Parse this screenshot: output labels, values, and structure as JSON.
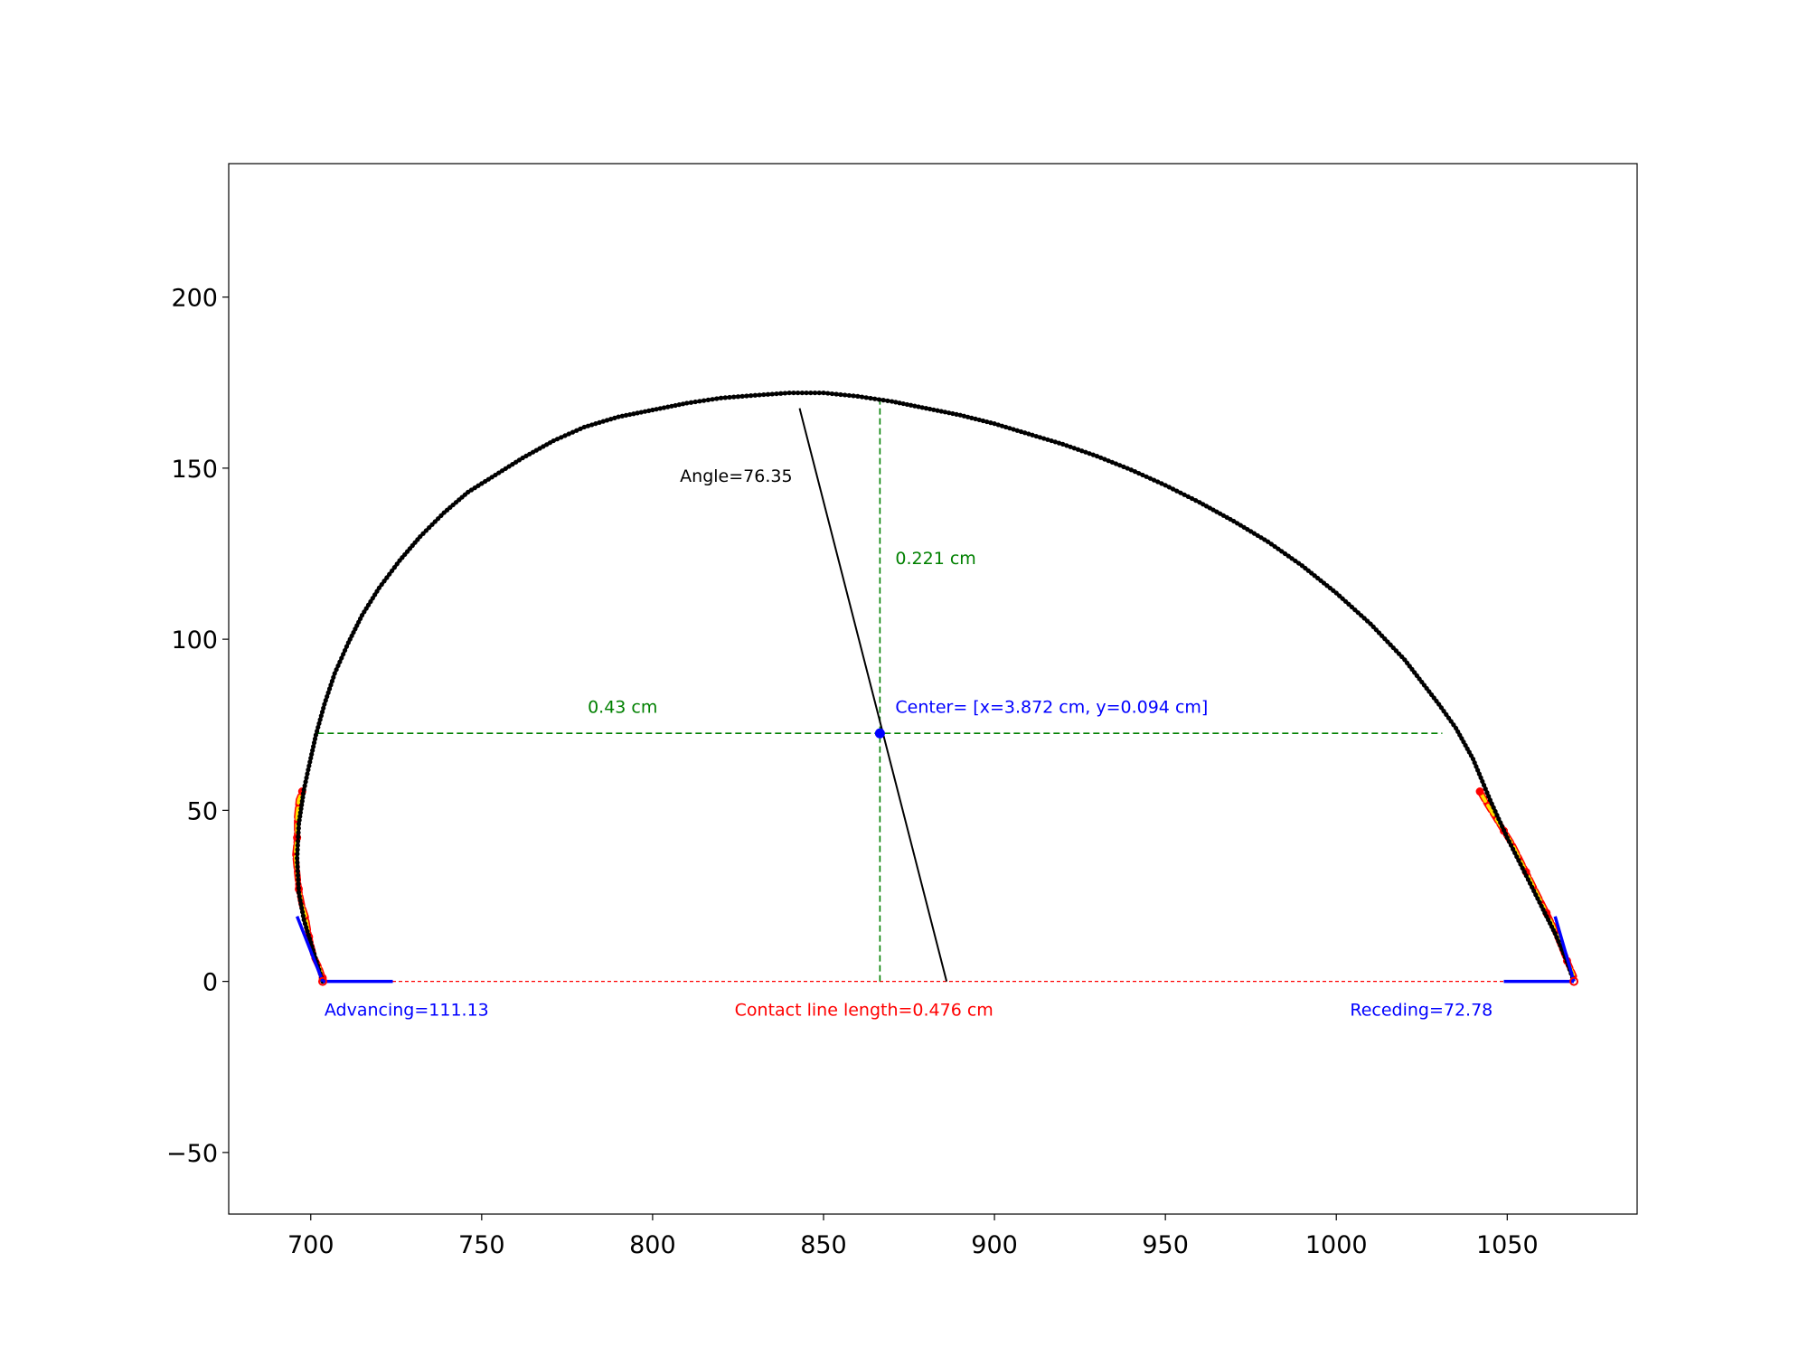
{
  "chart_data": {
    "type": "scatter",
    "title": "",
    "xlabel": "",
    "ylabel": "",
    "xlim": [
      676,
      1088
    ],
    "ylim": [
      -68,
      239
    ],
    "xticks": [
      700,
      750,
      800,
      850,
      900,
      950,
      1000,
      1050
    ],
    "yticks": [
      200,
      150,
      100,
      50,
      0,
      -50
    ],
    "xtick_labels": [
      "700",
      "750",
      "800",
      "850",
      "900",
      "950",
      "1000",
      "1050"
    ],
    "ytick_labels": [
      "200",
      "150",
      "100",
      "50",
      "0",
      "−50"
    ],
    "grid": false,
    "legend": "none",
    "droplet_profile": {
      "color": "#000000",
      "left_x": 703.5,
      "right_x": 1069.5,
      "top_x": 850,
      "top_y": 172,
      "points": [
        [
          703.5,
          0
        ],
        [
          701,
          8
        ],
        [
          698,
          18
        ],
        [
          696.5,
          26
        ],
        [
          696,
          36
        ],
        [
          696.5,
          46
        ],
        [
          698,
          56
        ],
        [
          699.5,
          63
        ],
        [
          701.5,
          72
        ],
        [
          704,
          81
        ],
        [
          707,
          90
        ],
        [
          711,
          99
        ],
        [
          715,
          107
        ],
        [
          720,
          115
        ],
        [
          726,
          123
        ],
        [
          732,
          130
        ],
        [
          739,
          137
        ],
        [
          746,
          143
        ],
        [
          754,
          148
        ],
        [
          762,
          153
        ],
        [
          771,
          158
        ],
        [
          780,
          162
        ],
        [
          790,
          165
        ],
        [
          800,
          167
        ],
        [
          810,
          169
        ],
        [
          820,
          170.5
        ],
        [
          830,
          171.3
        ],
        [
          840,
          172
        ],
        [
          850,
          172
        ],
        [
          860,
          171
        ],
        [
          870,
          169.5
        ],
        [
          880,
          167.5
        ],
        [
          890,
          165.5
        ],
        [
          900,
          163
        ],
        [
          910,
          160
        ],
        [
          920,
          157
        ],
        [
          930,
          153.5
        ],
        [
          940,
          149.5
        ],
        [
          950,
          145
        ],
        [
          960,
          140
        ],
        [
          970,
          134.5
        ],
        [
          980,
          128.5
        ],
        [
          990,
          121.5
        ],
        [
          1000,
          113.5
        ],
        [
          1010,
          104.5
        ],
        [
          1020,
          94
        ],
        [
          1030,
          81
        ],
        [
          1035,
          74
        ],
        [
          1040,
          65
        ],
        [
          1045,
          53
        ],
        [
          1050,
          42
        ],
        [
          1055,
          32
        ],
        [
          1060,
          22
        ],
        [
          1064,
          14
        ],
        [
          1067,
          7
        ],
        [
          1069.5,
          0
        ]
      ]
    },
    "contact_line": {
      "x1": 703.5,
      "x2": 1069.5,
      "y": 0,
      "color": "#ff0000",
      "label": "Contact line length=0.476 cm",
      "label_x": 824,
      "label_y": -10
    },
    "center": {
      "x": 866.5,
      "y": 72.5,
      "color": "#0000ff",
      "label": "Center= [x=3.872 cm, y=0.094 cm]",
      "label_x": 871,
      "label_y": 78.5
    },
    "horizontal_measure": {
      "x1": 702,
      "x2": 1031,
      "y": 72.5,
      "color": "#008000",
      "label": "0.43 cm",
      "label_x": 781,
      "label_y": 78.5
    },
    "vertical_measure": {
      "x": 866.5,
      "y1": 0,
      "y2": 169.5,
      "color": "#008000",
      "label": "0.221 cm",
      "label_x": 871,
      "label_y": 122
    },
    "tilt_line": {
      "x1": 843,
      "y1": 167.5,
      "x2": 886,
      "y2": 0,
      "color": "#000000",
      "label": "Angle=76.35",
      "label_x": 808,
      "label_y": 146
    },
    "advancing": {
      "label": "Advancing=111.13",
      "label_x": 704,
      "label_y": -10,
      "color": "#0000ff",
      "baseline": [
        [
          703.5,
          0
        ],
        [
          724,
          0
        ]
      ],
      "tangent": [
        [
          696,
          19
        ],
        [
          703.5,
          0
        ]
      ],
      "fit_points": [
        [
          703.5,
          1
        ],
        [
          702.5,
          4
        ],
        [
          701,
          7
        ],
        [
          699.5,
          13
        ],
        [
          698.5,
          19
        ],
        [
          697.5,
          22
        ],
        [
          696.5,
          27
        ],
        [
          696,
          32
        ],
        [
          695.5,
          37
        ],
        [
          696,
          42
        ],
        [
          696,
          48
        ],
        [
          696.5,
          53
        ],
        [
          697.5,
          55.5
        ]
      ]
    },
    "receding": {
      "label": "Receding=72.78",
      "label_x": 1004,
      "label_y": -10,
      "color": "#0000ff",
      "baseline": [
        [
          1049,
          0
        ],
        [
          1069.5,
          0
        ]
      ],
      "tangent": [
        [
          1064,
          19
        ],
        [
          1069.5,
          0
        ]
      ],
      "fit_points": [
        [
          1042,
          55.5
        ],
        [
          1044,
          52
        ],
        [
          1046.5,
          48
        ],
        [
          1049,
          44
        ],
        [
          1051.5,
          40
        ],
        [
          1053.5,
          36
        ],
        [
          1055.5,
          32
        ],
        [
          1057.5,
          28
        ],
        [
          1059.5,
          24
        ],
        [
          1061.5,
          20
        ],
        [
          1063.5,
          16
        ],
        [
          1065.5,
          11
        ],
        [
          1067.5,
          6
        ],
        [
          1069.5,
          1.5
        ]
      ]
    }
  }
}
